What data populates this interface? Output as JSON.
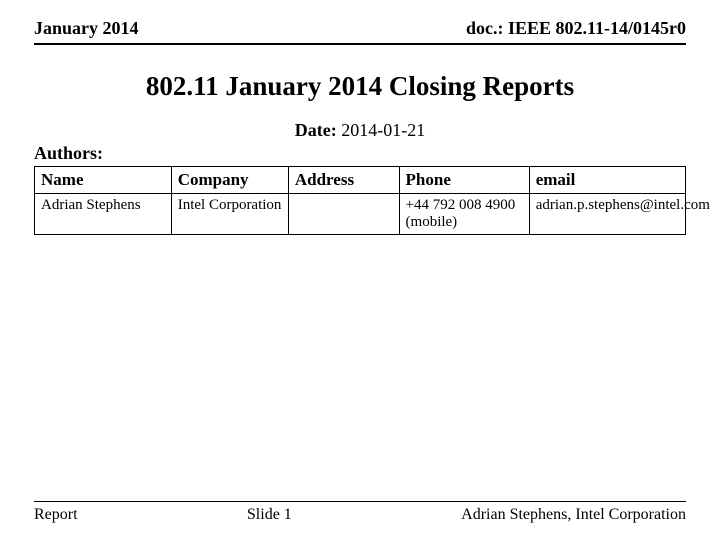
{
  "header": {
    "left": "January 2014",
    "right": "doc.: IEEE 802.11-14/0145r0"
  },
  "title": "802.11 January 2014 Closing Reports",
  "date": {
    "label": "Date:",
    "value": "2014-01-21"
  },
  "authors_label": "Authors:",
  "table": {
    "columns": {
      "name": "Name",
      "company": "Company",
      "address": "Address",
      "phone": "Phone",
      "email": "email"
    },
    "row": {
      "name": "Adrian Stephens",
      "company": "Intel Corporation",
      "address": "",
      "phone": "+44 792 008 4900 (mobile)",
      "email": "adrian.p.stephens@intel.com"
    }
  },
  "footer": {
    "left": "Report",
    "center": "Slide 1",
    "right": "Adrian Stephens, Intel Corporation"
  }
}
